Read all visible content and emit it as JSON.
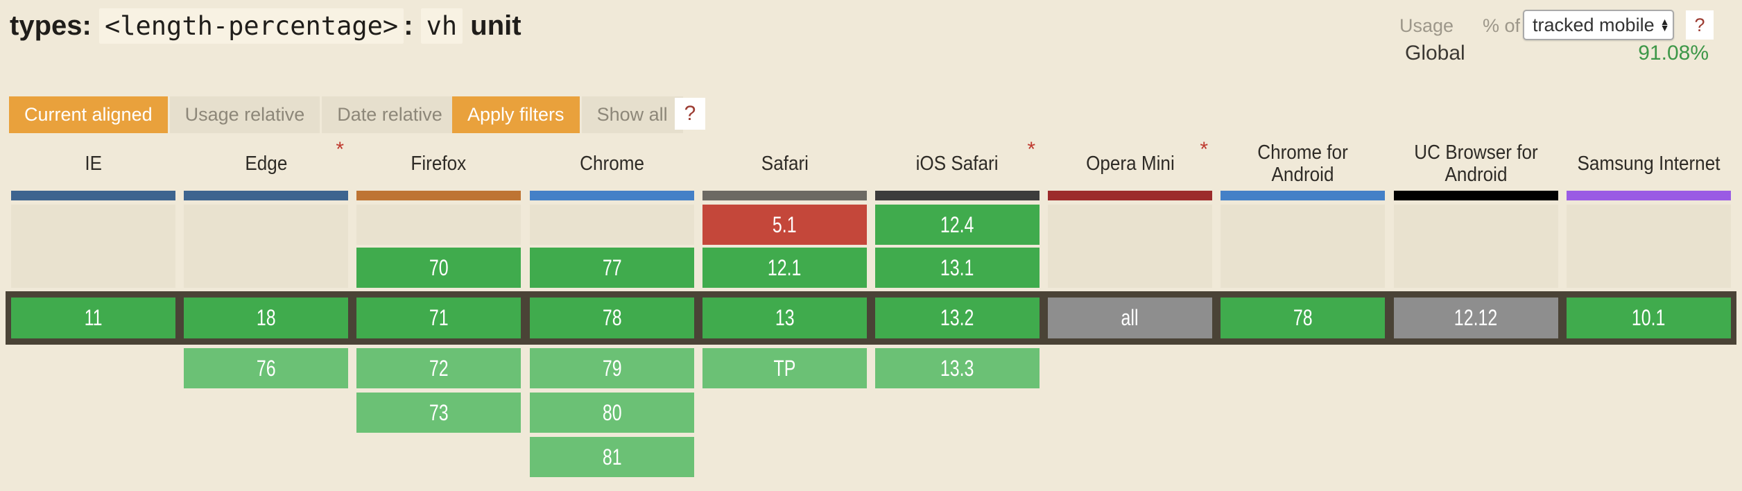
{
  "header": {
    "title_parts": [
      {
        "text": "types: ",
        "code": false
      },
      {
        "text": "<length-percentage>",
        "code": true
      },
      {
        "text": ": ",
        "code": false
      },
      {
        "text": "vh",
        "code": true
      },
      {
        "text": " unit",
        "code": false
      }
    ],
    "usage_label": "Usage",
    "percent_of_label": "% of",
    "usage_select_value": "tracked mobile",
    "usage_help_label": "?",
    "region_label": "Global",
    "usage_value": "91.08%"
  },
  "filters": {
    "view_modes": [
      {
        "label": "Current aligned",
        "active": true
      },
      {
        "label": "Usage relative",
        "active": false
      },
      {
        "label": "Date relative",
        "active": false
      }
    ],
    "apply_label": "Apply filters",
    "show_all_label": "Show all",
    "help_label": "?"
  },
  "colors": {
    "page_bg": "#F0E9D8",
    "supported": "#40AB4D",
    "supported_future": "#6BC175",
    "not_supported": "#C4473A",
    "unknown": "#8E8E8E",
    "empty_cell": "#E9E2CF",
    "current_band": "#4A4336",
    "accent_orange": "#E9A13C",
    "usage_green": "#3D9748",
    "asterisk_red": "#BF3A2F"
  },
  "table": {
    "rows": 6,
    "current_row": 3,
    "columns": [
      {
        "name": "IE",
        "asterisk": false,
        "bar_color": "#3D648F",
        "cells": [
          {
            "row": 1,
            "span": 2,
            "type": "empty",
            "text": ""
          },
          {
            "row": 3,
            "type": "y",
            "text": "11"
          }
        ]
      },
      {
        "name": "Edge",
        "asterisk": true,
        "bar_color": "#3D648F",
        "cells": [
          {
            "row": 1,
            "span": 2,
            "type": "empty",
            "text": ""
          },
          {
            "row": 3,
            "type": "y",
            "text": "18"
          },
          {
            "row": 4,
            "type": "y-light",
            "text": "76"
          }
        ]
      },
      {
        "name": "Firefox",
        "asterisk": false,
        "bar_color": "#BE7433",
        "cells": [
          {
            "row": 1,
            "type": "empty",
            "text": ""
          },
          {
            "row": 2,
            "type": "y",
            "text": "70"
          },
          {
            "row": 3,
            "type": "y",
            "text": "71"
          },
          {
            "row": 4,
            "type": "y-light",
            "text": "72"
          },
          {
            "row": 5,
            "type": "y-light",
            "text": "73"
          }
        ]
      },
      {
        "name": "Chrome",
        "asterisk": false,
        "bar_color": "#4480C7",
        "cells": [
          {
            "row": 1,
            "type": "empty",
            "text": ""
          },
          {
            "row": 2,
            "type": "y",
            "text": "77"
          },
          {
            "row": 3,
            "type": "y",
            "text": "78"
          },
          {
            "row": 4,
            "type": "y-light",
            "text": "79"
          },
          {
            "row": 5,
            "type": "y-light",
            "text": "80"
          },
          {
            "row": 6,
            "type": "y-light",
            "text": "81"
          }
        ]
      },
      {
        "name": "Safari",
        "asterisk": false,
        "bar_color": "#6C6963",
        "cells": [
          {
            "row": 1,
            "type": "n",
            "text": "5.1"
          },
          {
            "row": 2,
            "type": "y",
            "text": "12.1"
          },
          {
            "row": 3,
            "type": "y",
            "text": "13"
          },
          {
            "row": 4,
            "type": "y-light",
            "text": "TP"
          }
        ]
      },
      {
        "name": "iOS Safari",
        "asterisk": true,
        "bar_color": "#3C3C3C",
        "cells": [
          {
            "row": 1,
            "type": "y",
            "text": "12.4"
          },
          {
            "row": 2,
            "type": "y",
            "text": "13.1"
          },
          {
            "row": 3,
            "type": "y",
            "text": "13.2"
          },
          {
            "row": 4,
            "type": "y-light",
            "text": "13.3"
          }
        ]
      },
      {
        "name": "Opera Mini",
        "asterisk": true,
        "bar_color": "#9C2B2B",
        "cells": [
          {
            "row": 1,
            "span": 2,
            "type": "empty",
            "text": ""
          },
          {
            "row": 3,
            "type": "u",
            "text": "all"
          }
        ]
      },
      {
        "name": "Chrome for Android",
        "asterisk": false,
        "bar_color": "#4480C7",
        "cells": [
          {
            "row": 1,
            "span": 2,
            "type": "empty",
            "text": ""
          },
          {
            "row": 3,
            "type": "y",
            "text": "78"
          }
        ]
      },
      {
        "name": "UC Browser for Android",
        "asterisk": false,
        "bar_color": "#000000",
        "cells": [
          {
            "row": 1,
            "span": 2,
            "type": "empty",
            "text": ""
          },
          {
            "row": 3,
            "type": "u",
            "text": "12.12"
          }
        ]
      },
      {
        "name": "Samsung Internet",
        "asterisk": false,
        "bar_color": "#9A5BE4",
        "cells": [
          {
            "row": 1,
            "span": 2,
            "type": "empty",
            "text": ""
          },
          {
            "row": 3,
            "type": "y",
            "text": "10.1"
          }
        ]
      }
    ]
  }
}
